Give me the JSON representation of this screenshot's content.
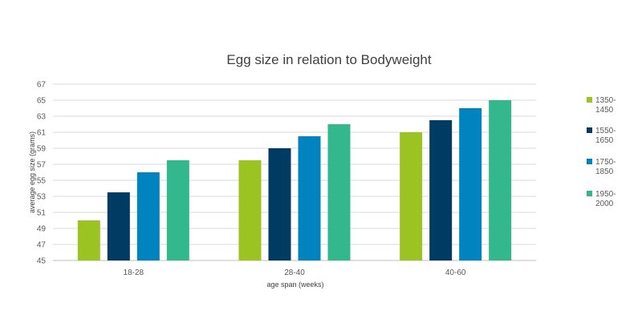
{
  "chart_data": {
    "type": "bar",
    "title": "Egg size in relation to Bodyweight",
    "xlabel": "age span (weeks)",
    "ylabel": "average egg size (grams)",
    "categories": [
      "18-28",
      "28-40",
      "40-60"
    ],
    "ylim": [
      45,
      67
    ],
    "yticks": [
      45,
      47,
      49,
      51,
      53,
      55,
      57,
      59,
      61,
      63,
      65,
      67
    ],
    "grid": true,
    "legend_position": "right",
    "series": [
      {
        "name_lines": [
          "1350-",
          "1450"
        ],
        "color": "#9bc423",
        "values": [
          50,
          57.5,
          61
        ]
      },
      {
        "name_lines": [
          "1550-",
          "1650"
        ],
        "color": "#003b63",
        "values": [
          53.5,
          59,
          62.5
        ]
      },
      {
        "name_lines": [
          "1750-",
          "1850"
        ],
        "color": "#0083bf",
        "values": [
          56,
          60.5,
          64
        ]
      },
      {
        "name_lines": [
          "1950-",
          "2000"
        ],
        "color": "#33b88e",
        "values": [
          57.5,
          62,
          65
        ]
      }
    ]
  }
}
